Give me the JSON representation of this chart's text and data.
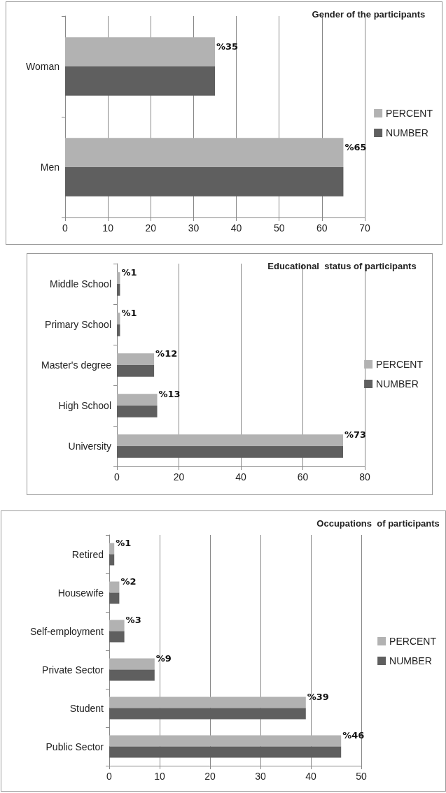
{
  "chart_data": [
    {
      "type": "bar",
      "orientation": "horizontal",
      "title": "Gender of the participants",
      "categories": [
        "Woman",
        "Men"
      ],
      "series": [
        {
          "name": "PERCENT",
          "color": "#b2b2b2",
          "values": [
            35,
            65
          ],
          "value_labels": [
            "%35",
            "%65"
          ]
        },
        {
          "name": "NUMBER",
          "color": "#5f5f5f",
          "values": [
            35,
            65
          ]
        }
      ],
      "xlim": [
        0,
        70
      ],
      "xticks": [
        0,
        10,
        20,
        30,
        40,
        50,
        60,
        70
      ],
      "grid": "x",
      "legend": "right"
    },
    {
      "type": "bar",
      "orientation": "horizontal",
      "title": "Educational  status of participants",
      "categories": [
        "Middle School",
        "Primary School",
        "Master's degree",
        "High School",
        "University"
      ],
      "series": [
        {
          "name": "PERCENT",
          "color": "#b2b2b2",
          "values": [
            1,
            1,
            12,
            13,
            73
          ],
          "value_labels": [
            "%1",
            "%1",
            "%12",
            "%13",
            "%73"
          ]
        },
        {
          "name": "NUMBER",
          "color": "#5f5f5f",
          "values": [
            1,
            1,
            12,
            13,
            73
          ]
        }
      ],
      "xlim": [
        0,
        80
      ],
      "xticks": [
        0,
        20,
        40,
        60,
        80
      ],
      "grid": "x",
      "legend": "right"
    },
    {
      "type": "bar",
      "orientation": "horizontal",
      "title": "Occupations  of participants",
      "categories": [
        "Retired",
        "Housewife",
        "Self-employment",
        "Private Sector",
        "Student",
        "Public Sector"
      ],
      "series": [
        {
          "name": "PERCENT",
          "color": "#b2b2b2",
          "values": [
            1,
            2,
            3,
            9,
            39,
            46
          ],
          "value_labels": [
            "%1",
            "%2",
            "%3",
            "%9",
            "%39",
            "%46"
          ]
        },
        {
          "name": "NUMBER",
          "color": "#5f5f5f",
          "values": [
            1,
            2,
            3,
            9,
            39,
            46
          ]
        }
      ],
      "xlim": [
        0,
        50
      ],
      "xticks": [
        0,
        10,
        20,
        30,
        40,
        50
      ],
      "grid": "x",
      "legend": "right"
    }
  ]
}
